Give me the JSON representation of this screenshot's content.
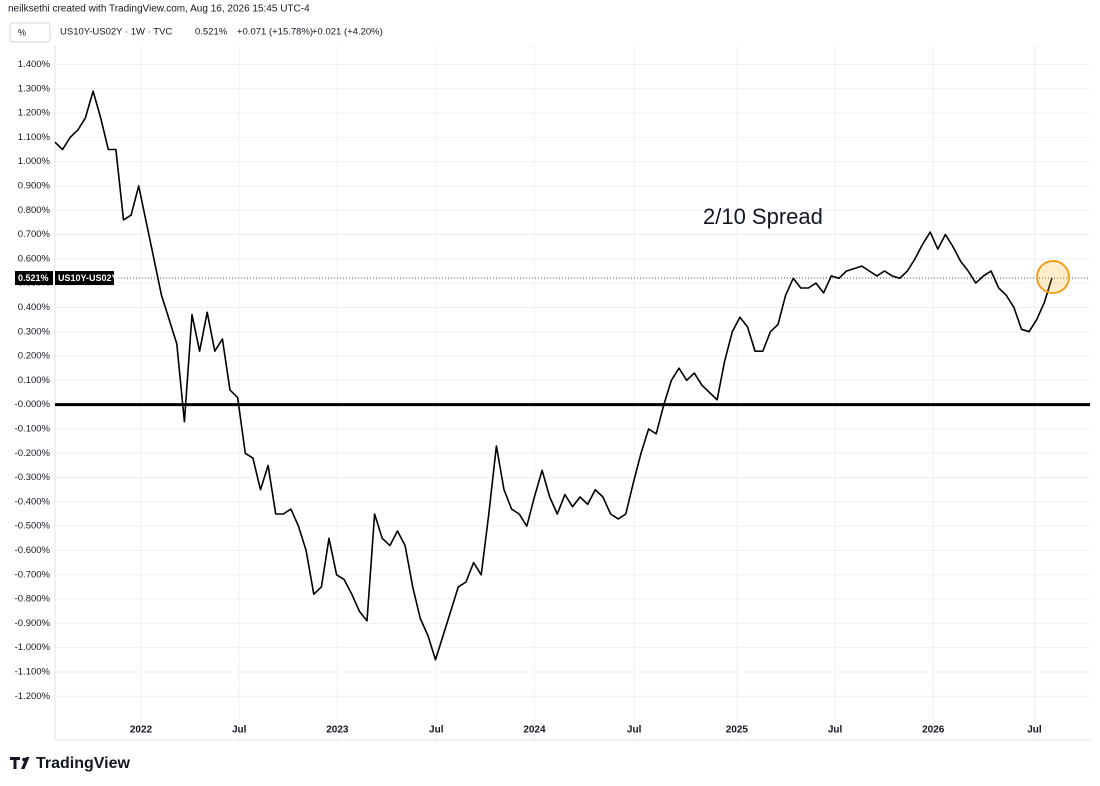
{
  "credit": "neilksethi created with TradingView.com, Aug 16, 2026 15:45 UTC-4",
  "unit_button": "%",
  "symbol_line": {
    "symbol": "US10Y-US02Y · 1W · TVC",
    "last": "0.521%",
    "change": "+0.071 (+15.78%)",
    "change2": "+0.021 (+4.20%)"
  },
  "logo": "TradingView",
  "chart_data": {
    "type": "line",
    "annotation": "2/10 Spread",
    "series": [
      {
        "name": "US10Y-US02Y",
        "color": "#000000",
        "values": [
          1.08,
          1.05,
          1.1,
          1.13,
          1.18,
          1.29,
          1.18,
          1.05,
          1.05,
          0.76,
          0.78,
          0.9,
          0.75,
          0.6,
          0.45,
          0.35,
          0.25,
          -0.07,
          0.37,
          0.22,
          0.38,
          0.22,
          0.27,
          0.06,
          0.03,
          -0.2,
          -0.22,
          -0.35,
          -0.25,
          -0.45,
          -0.45,
          -0.43,
          -0.5,
          -0.6,
          -0.78,
          -0.75,
          -0.55,
          -0.7,
          -0.72,
          -0.78,
          -0.85,
          -0.89,
          -0.45,
          -0.55,
          -0.58,
          -0.52,
          -0.58,
          -0.75,
          -0.88,
          -0.95,
          -1.05,
          -0.95,
          -0.85,
          -0.75,
          -0.73,
          -0.65,
          -0.7,
          -0.45,
          -0.17,
          -0.35,
          -0.43,
          -0.45,
          -0.5,
          -0.38,
          -0.27,
          -0.38,
          -0.45,
          -0.37,
          -0.42,
          -0.38,
          -0.41,
          -0.35,
          -0.38,
          -0.45,
          -0.47,
          -0.45,
          -0.32,
          -0.2,
          -0.1,
          -0.12,
          0.0,
          0.1,
          0.15,
          0.1,
          0.13,
          0.08,
          0.05,
          0.02,
          0.18,
          0.3,
          0.36,
          0.32,
          0.22,
          0.22,
          0.3,
          0.33,
          0.45,
          0.52,
          0.48,
          0.48,
          0.5,
          0.46,
          0.53,
          0.52,
          0.55,
          0.56,
          0.57,
          0.55,
          0.53,
          0.55,
          0.53,
          0.52,
          0.55,
          0.6,
          0.66,
          0.71,
          0.64,
          0.7,
          0.65,
          0.59,
          0.55,
          0.5,
          0.53,
          0.55,
          0.48,
          0.45,
          0.4,
          0.31,
          0.3,
          0.35,
          0.42,
          0.521
        ]
      }
    ],
    "price_tag": {
      "value": 0.521,
      "label": "0.521%"
    },
    "hline": 0,
    "xlim": [
      0,
      136
    ],
    "xticks": [
      {
        "value": 11.3,
        "label": "2022"
      },
      {
        "value": 24.2,
        "label": "Jul"
      },
      {
        "value": 37.1,
        "label": "2023"
      },
      {
        "value": 50.1,
        "label": "Jul"
      },
      {
        "value": 63.0,
        "label": "2024"
      },
      {
        "value": 76.1,
        "label": "Jul"
      },
      {
        "value": 89.6,
        "label": "2025"
      },
      {
        "value": 102.5,
        "label": "Jul"
      },
      {
        "value": 115.4,
        "label": "2026"
      },
      {
        "value": 128.7,
        "label": "Jul"
      }
    ],
    "ylim": [
      -1.38,
      1.48
    ],
    "yticks": [
      {
        "value": 1.4,
        "label": "1.400%"
      },
      {
        "value": 1.3,
        "label": "1.300%"
      },
      {
        "value": 1.2,
        "label": "1.200%"
      },
      {
        "value": 1.1,
        "label": "1.100%"
      },
      {
        "value": 1.0,
        "label": "1.000%"
      },
      {
        "value": 0.9,
        "label": "0.900%"
      },
      {
        "value": 0.8,
        "label": "0.800%"
      },
      {
        "value": 0.7,
        "label": "0.700%"
      },
      {
        "value": 0.6,
        "label": "0.600%"
      },
      {
        "value": 0.5,
        "label": "0.500%"
      },
      {
        "value": 0.4,
        "label": "0.400%"
      },
      {
        "value": 0.3,
        "label": "0.300%"
      },
      {
        "value": 0.2,
        "label": "0.200%"
      },
      {
        "value": 0.1,
        "label": "0.100%"
      },
      {
        "value": 0,
        "label": "-0.000%"
      },
      {
        "value": -0.1,
        "label": "-0.100%"
      },
      {
        "value": -0.2,
        "label": "-0.200%"
      },
      {
        "value": -0.3,
        "label": "-0.300%"
      },
      {
        "value": -0.4,
        "label": "-0.400%"
      },
      {
        "value": -0.5,
        "label": "-0.500%"
      },
      {
        "value": -0.6,
        "label": "-0.600%"
      },
      {
        "value": -0.7,
        "label": "-0.700%"
      },
      {
        "value": -0.8,
        "label": "-0.800%"
      },
      {
        "value": -0.9,
        "label": "-0.900%"
      },
      {
        "value": -1.0,
        "label": "-1.000%"
      },
      {
        "value": -1.1,
        "label": "-1.100%"
      },
      {
        "value": -1.2,
        "label": "-1.200%"
      }
    ],
    "grid": true
  }
}
